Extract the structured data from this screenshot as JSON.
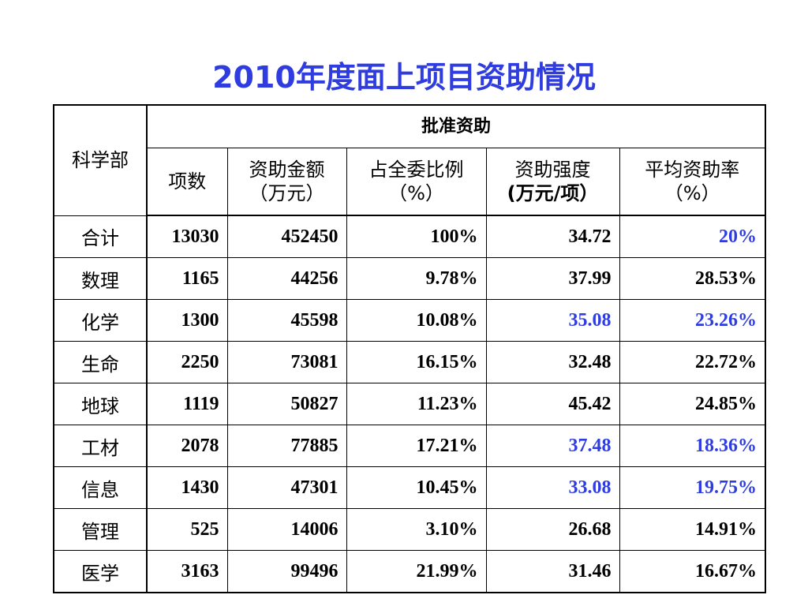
{
  "title": "2010年度面上项目资助情况",
  "table": {
    "corner_header": "科学部",
    "group_header": "批准资助",
    "columns": [
      {
        "line1": "项数",
        "line2": ""
      },
      {
        "line1": "资助金额",
        "line2": "（万元）"
      },
      {
        "line1": "占全委比例",
        "line2": "（%）"
      },
      {
        "line1": "资助强度",
        "line2": "(万元/项）"
      },
      {
        "line1": "平均资助率",
        "line2": "（%）"
      }
    ],
    "rows": [
      {
        "dept": "合计",
        "count": "13030",
        "amount": "452450",
        "share": "100%",
        "intensity": "34.72",
        "rate": "20%"
      },
      {
        "dept": "数理",
        "count": "1165",
        "amount": "44256",
        "share": "9.78%",
        "intensity": "37.99",
        "rate": "28.53%"
      },
      {
        "dept": "化学",
        "count": "1300",
        "amount": "45598",
        "share": "10.08%",
        "intensity": "35.08",
        "rate": "23.26%"
      },
      {
        "dept": "生命",
        "count": "2250",
        "amount": "73081",
        "share": "16.15%",
        "intensity": "32.48",
        "rate": "22.72%"
      },
      {
        "dept": "地球",
        "count": "1119",
        "amount": "50827",
        "share": "11.23%",
        "intensity": "45.42",
        "rate": "24.85%"
      },
      {
        "dept": "工材",
        "count": "2078",
        "amount": "77885",
        "share": "17.21%",
        "intensity": "37.48",
        "rate": "18.36%"
      },
      {
        "dept": "信息",
        "count": "1430",
        "amount": "47301",
        "share": "10.45%",
        "intensity": "33.08",
        "rate": "19.75%"
      },
      {
        "dept": "管理",
        "count": "525",
        "amount": "14006",
        "share": "3.10%",
        "intensity": "26.68",
        "rate": "14.91%"
      },
      {
        "dept": "医学",
        "count": "3163",
        "amount": "99496",
        "share": "21.99%",
        "intensity": "31.46",
        "rate": "16.67%"
      }
    ]
  },
  "colors": {
    "title": "#2f3de0",
    "highlight": "#2f3de0",
    "text": "#000000",
    "border": "#000000",
    "background": "#ffffff"
  }
}
